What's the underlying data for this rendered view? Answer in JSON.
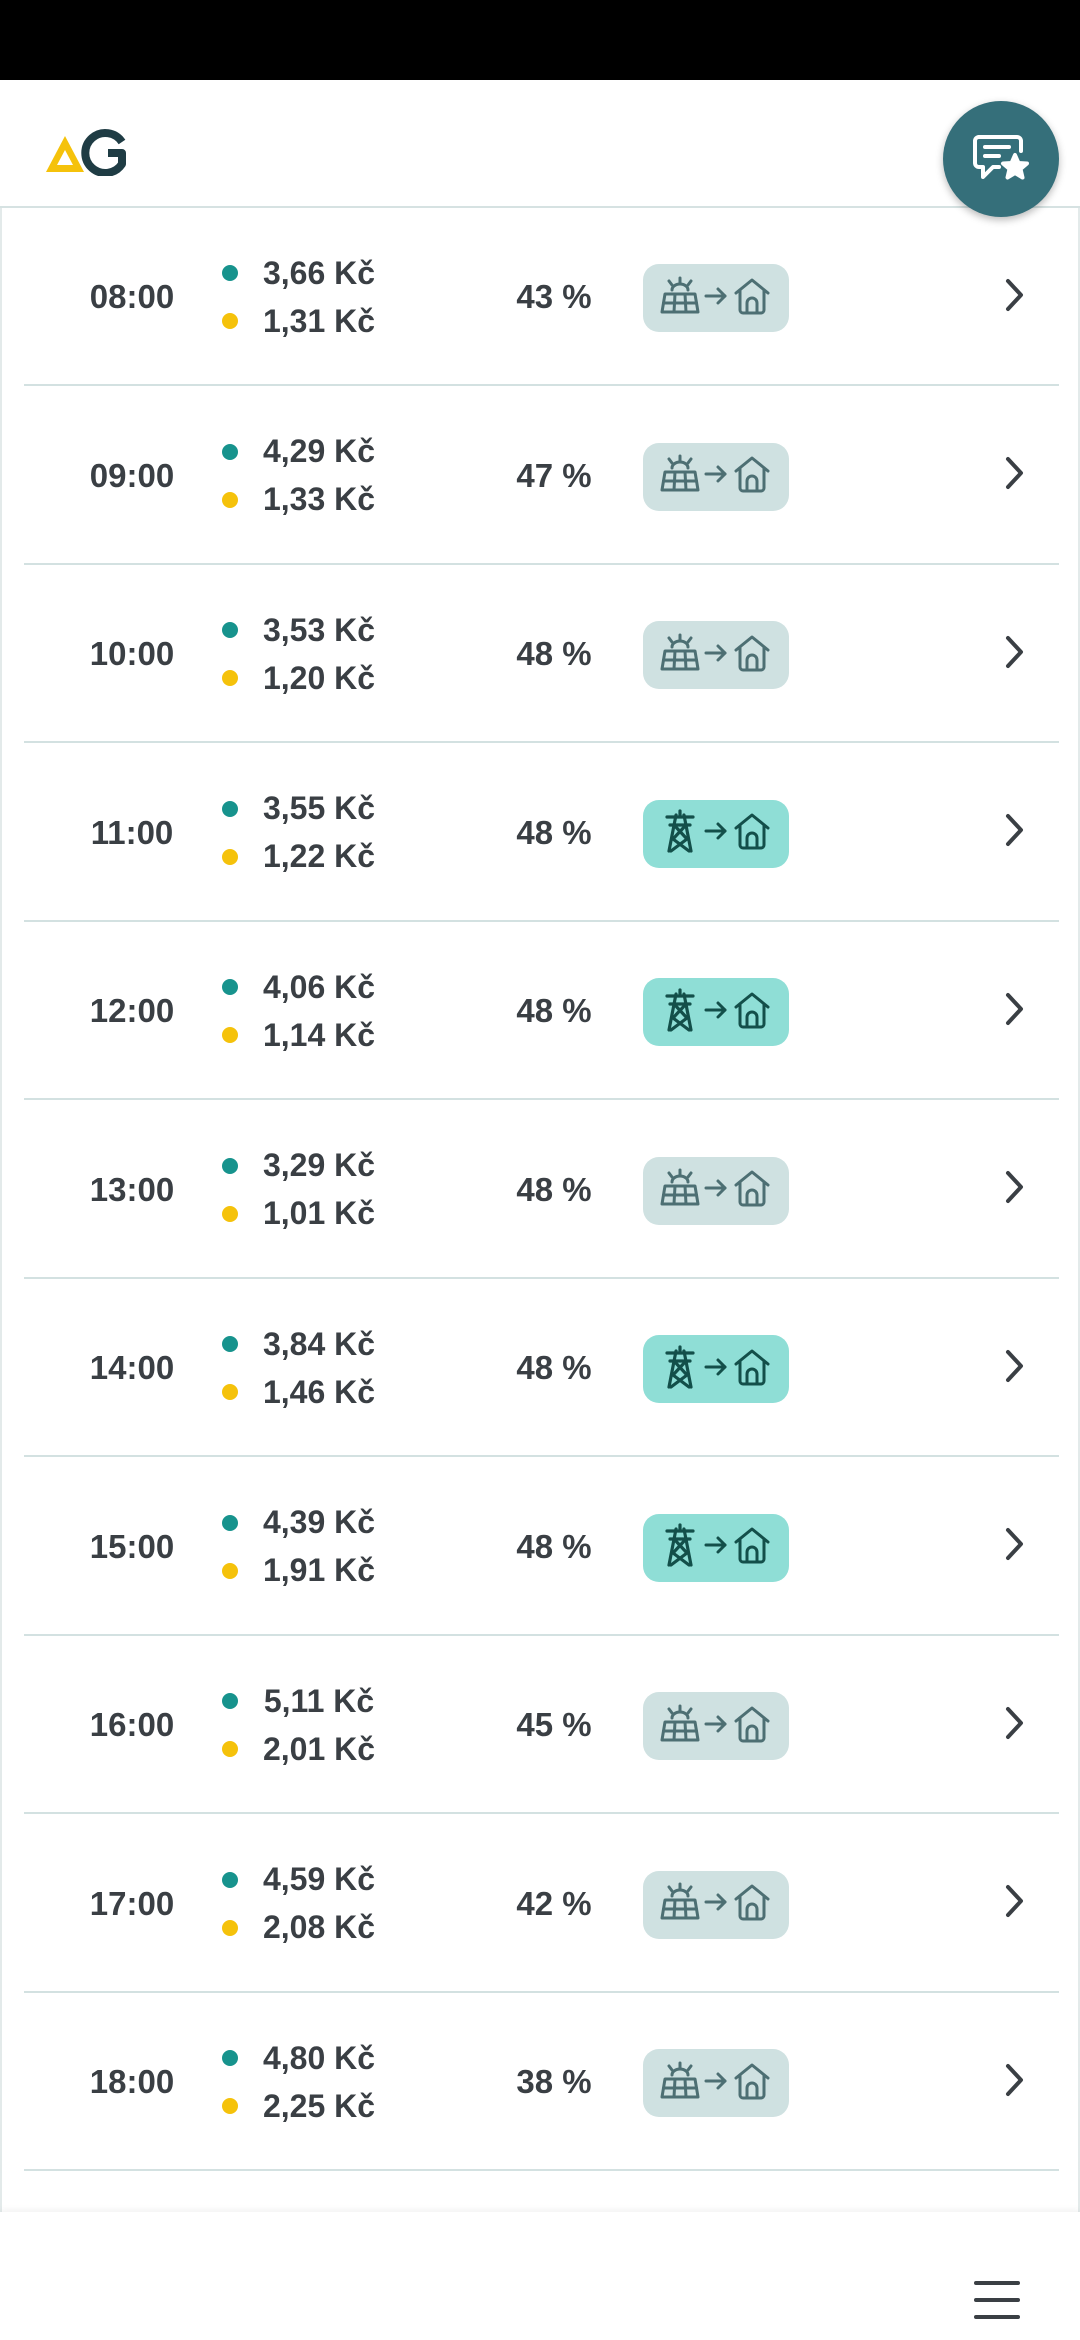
{
  "rows": [
    {
      "time": "08:00",
      "price_teal": "3,66 Kč",
      "price_yellow": "1,31 Kč",
      "percent": "43 %",
      "source": "solar"
    },
    {
      "time": "09:00",
      "price_teal": "4,29 Kč",
      "price_yellow": "1,33 Kč",
      "percent": "47 %",
      "source": "solar"
    },
    {
      "time": "10:00",
      "price_teal": "3,53 Kč",
      "price_yellow": "1,20 Kč",
      "percent": "48 %",
      "source": "solar"
    },
    {
      "time": "11:00",
      "price_teal": "3,55 Kč",
      "price_yellow": "1,22 Kč",
      "percent": "48 %",
      "source": "grid"
    },
    {
      "time": "12:00",
      "price_teal": "4,06 Kč",
      "price_yellow": "1,14 Kč",
      "percent": "48 %",
      "source": "grid"
    },
    {
      "time": "13:00",
      "price_teal": "3,29 Kč",
      "price_yellow": "1,01 Kč",
      "percent": "48 %",
      "source": "solar"
    },
    {
      "time": "14:00",
      "price_teal": "3,84 Kč",
      "price_yellow": "1,46 Kč",
      "percent": "48 %",
      "source": "grid"
    },
    {
      "time": "15:00",
      "price_teal": "4,39 Kč",
      "price_yellow": "1,91 Kč",
      "percent": "48 %",
      "source": "grid"
    },
    {
      "time": "16:00",
      "price_teal": "5,11 Kč",
      "price_yellow": "2,01 Kč",
      "percent": "45 %",
      "source": "solar"
    },
    {
      "time": "17:00",
      "price_teal": "4,59 Kč",
      "price_yellow": "2,08 Kč",
      "percent": "42 %",
      "source": "solar"
    },
    {
      "time": "18:00",
      "price_teal": "4,80 Kč",
      "price_yellow": "2,25 Kč",
      "percent": "38 %",
      "source": "solar"
    }
  ],
  "icons": {
    "solar": "solar-panel-icon",
    "grid": "power-pylon-icon",
    "arrow": "arrow-right-icon",
    "home": "home-icon",
    "chevron": "chevron-right-icon",
    "feedback": "feedback-star-icon",
    "menu": "hamburger-menu-icon"
  },
  "colors": {
    "brand_teal": "#356f7a",
    "logo_yellow": "#f5c20b",
    "logo_dark": "#1f3c44",
    "dot_teal": "#17938d",
    "dot_yellow": "#f5c20b",
    "solar_badge_bg": "#cfe1e1",
    "grid_badge_bg": "#8fded6",
    "icon_solar": "#4d6f73",
    "icon_grid": "#134f4a"
  }
}
